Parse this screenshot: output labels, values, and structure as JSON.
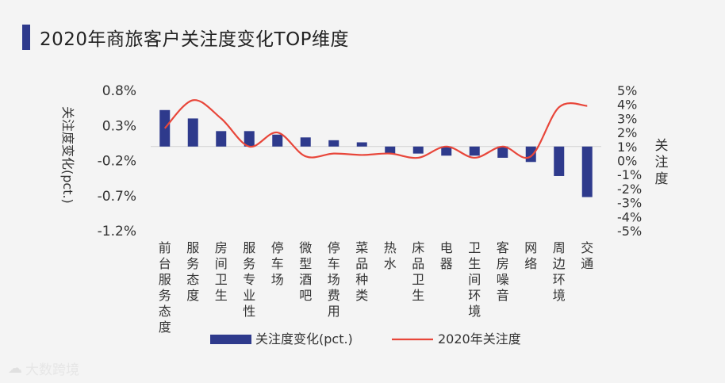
{
  "header": {
    "title": "2020年商旅客户关注度变化TOP维度"
  },
  "watermark": {
    "icon": "cloud-icon",
    "text": "大数跨境"
  },
  "colors": {
    "bar": "#2e3a8c",
    "line": "#e8463a",
    "title_accent": "#2e3a8c"
  },
  "chart_data": {
    "type": "bar",
    "categories": [
      "前台服务态度",
      "服务态度",
      "房间卫生",
      "服务专业性",
      "停车场",
      "微型酒吧",
      "停车场费用",
      "菜品种类",
      "热水",
      "床品卫生",
      "电器",
      "卫生间环境",
      "客房噪音",
      "网络",
      "周边环境",
      "交通"
    ],
    "series": [
      {
        "name": "关注度变化(pct.)",
        "type": "bar",
        "axis": "left",
        "values": [
          0.52,
          0.4,
          0.22,
          0.22,
          0.17,
          0.13,
          0.09,
          0.06,
          -0.1,
          -0.1,
          -0.13,
          -0.13,
          -0.16,
          -0.22,
          -0.42,
          -0.72
        ]
      },
      {
        "name": "2020年关注度",
        "type": "line",
        "axis": "right",
        "values": [
          2.3,
          4.3,
          3.0,
          1.0,
          2.0,
          0.3,
          0.5,
          0.4,
          0.5,
          0.2,
          1.0,
          0.2,
          1.0,
          0.3,
          3.8,
          3.9
        ]
      }
    ],
    "y_left": {
      "label": "关注度变化(pct.)",
      "ylim": [
        -1.2,
        0.8
      ],
      "ticks": [
        0.8,
        0.3,
        -0.2,
        -0.7,
        -1.2
      ],
      "tick_labels": [
        "0.8%",
        "0.3%",
        "-0.2%",
        "-0.7%",
        "-1.2%"
      ]
    },
    "y_right": {
      "label": "关注度",
      "ylim": [
        -5,
        5
      ],
      "ticks": [
        5,
        4,
        3,
        2,
        1,
        0,
        -1,
        -2,
        -3,
        -4,
        -5
      ],
      "tick_labels": [
        "5%",
        "4%",
        "3%",
        "2%",
        "1%",
        "0%",
        "-1%",
        "-2%",
        "-3%",
        "-4%",
        "-5%"
      ]
    },
    "grid": false,
    "legend": {
      "position": "bottom",
      "entries": [
        "关注度变化(pct.)",
        "2020年关注度"
      ]
    }
  }
}
